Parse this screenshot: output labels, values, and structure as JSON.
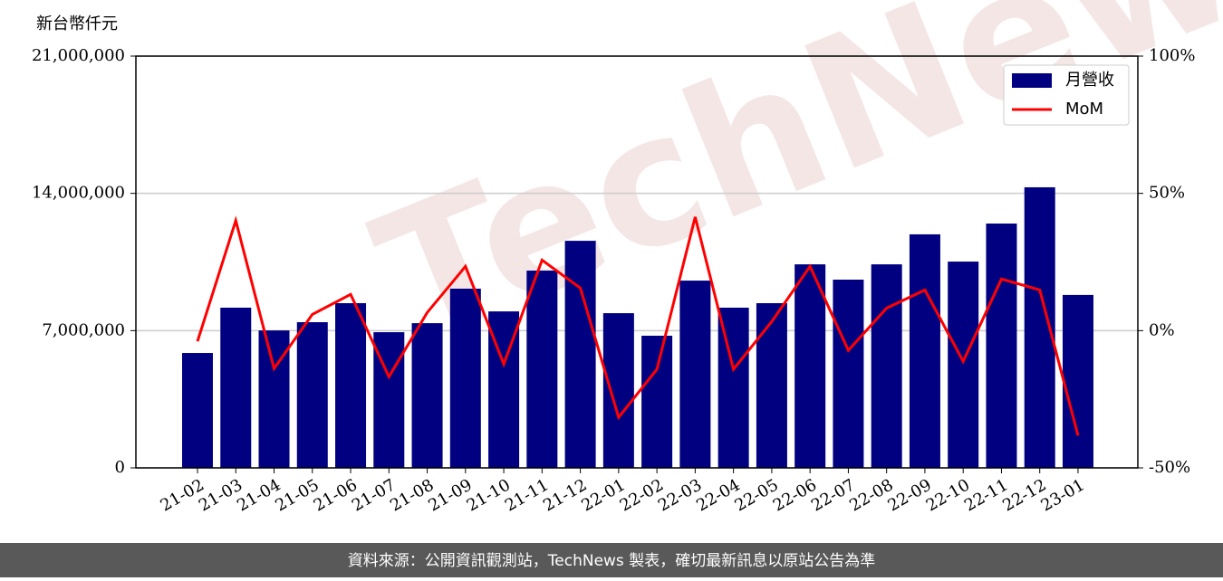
{
  "chart_data": {
    "type": "bar-line",
    "y_label": "新台幣仟元",
    "watermark": "TechNews",
    "footer": "資料來源：公開資訊觀測站，TechNews 製表，確切最新訊息以原站公告為準",
    "categories": [
      "21-02",
      "21-03",
      "21-04",
      "21-05",
      "21-06",
      "21-07",
      "21-08",
      "21-09",
      "21-10",
      "21-11",
      "21-12",
      "22-01",
      "22-02",
      "22-03",
      "22-04",
      "22-05",
      "22-06",
      "22-07",
      "22-08",
      "22-09",
      "22-10",
      "22-11",
      "22-12",
      "23-01"
    ],
    "series": [
      {
        "name": "月營收",
        "type": "bar",
        "color": "#000080",
        "values": [
          5860000,
          8170000,
          7010000,
          7430000,
          8400000,
          6920000,
          7380000,
          9140000,
          7980000,
          10060000,
          11580000,
          7890000,
          6740000,
          9550000,
          8170000,
          8400000,
          10380000,
          9600000,
          10380000,
          11910000,
          10520000,
          12460000,
          14310000,
          8820000
        ]
      },
      {
        "name": "MoM",
        "type": "line",
        "color": "#ff0000",
        "axis": "y2",
        "values": [
          -3.9,
          40.1,
          -13.8,
          5.9,
          13.2,
          -16.8,
          6.6,
          23.4,
          -12.2,
          25.7,
          15.5,
          -31.6,
          -14.1,
          41.4,
          -14.1,
          3.3,
          23.4,
          -7.2,
          8.2,
          14.8,
          -11.2,
          18.8,
          14.8,
          -38.2
        ]
      }
    ],
    "ylim": [
      0,
      21000000
    ],
    "yticks": [
      0,
      {
        "value": 7000000,
        "label": "7,000,000"
      },
      {
        "value": 14000000,
        "label": "14,000,000"
      },
      {
        "value": 21000000,
        "label": "21,000,000"
      }
    ],
    "y2lim": [
      -50,
      100
    ],
    "y2ticks": [
      {
        "value": -50,
        "label": "-50%"
      },
      {
        "value": 0,
        "label": "0%"
      },
      {
        "value": 50,
        "label": "50%"
      },
      {
        "value": 100,
        "label": "100%"
      }
    ],
    "grid": true,
    "legend": "upper right"
  }
}
